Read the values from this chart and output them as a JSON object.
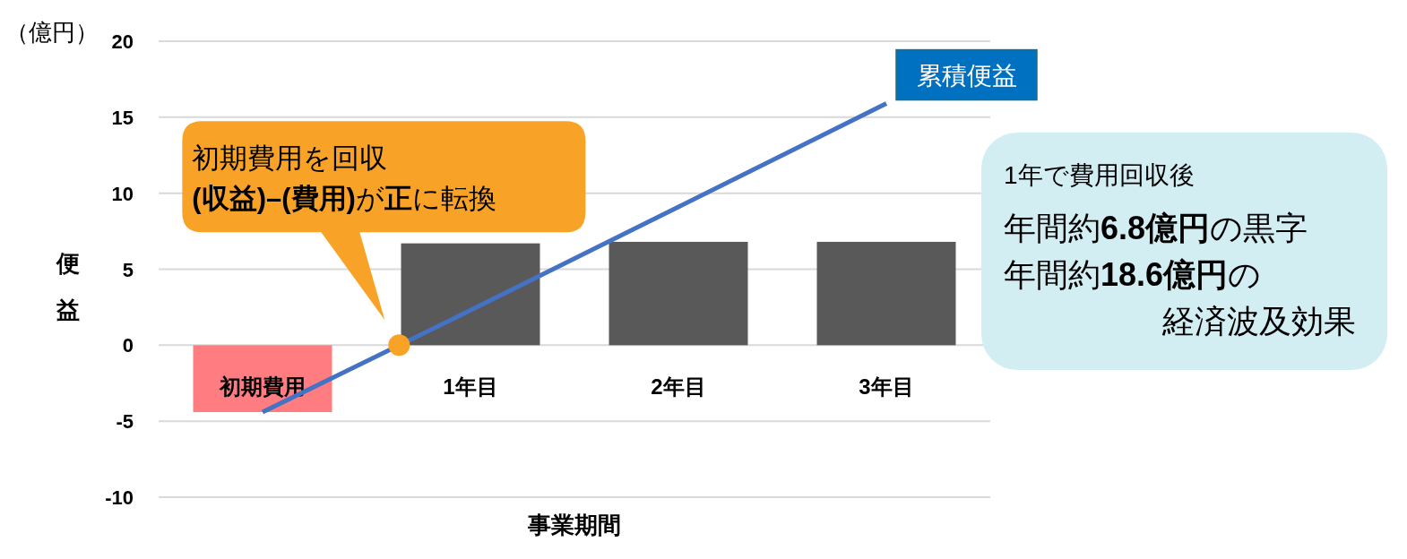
{
  "chart_data": {
    "type": "bar",
    "categories": [
      "初期費用",
      "1年目",
      "2年目",
      "3年目"
    ],
    "series": [
      {
        "colors": [
          "#ff7c80",
          "#595959",
          "#595959",
          "#595959"
        ],
        "values": [
          -4.4,
          6.7,
          6.8,
          6.8
        ]
      },
      {
        "type": "line",
        "name": "累積便益",
        "color": "#4472c4",
        "values": [
          -4.4,
          2.3,
          9.1,
          15.9
        ]
      }
    ],
    "ylim": [
      -10,
      20
    ],
    "yticks": [
      -10,
      -5,
      0,
      5,
      10,
      15,
      20
    ],
    "grid": "y",
    "xlabel": "事業期間",
    "ylabel": "便益",
    "annotations": [
      "（億円）",
      "初期費用を回収",
      "**(収益)–(費用)**が**正**に転換",
      "1年で費用回収後",
      "年間約**6.8億円**の黒字",
      "年間約**18.6億円**の",
      "経済波及効果"
    ]
  }
}
